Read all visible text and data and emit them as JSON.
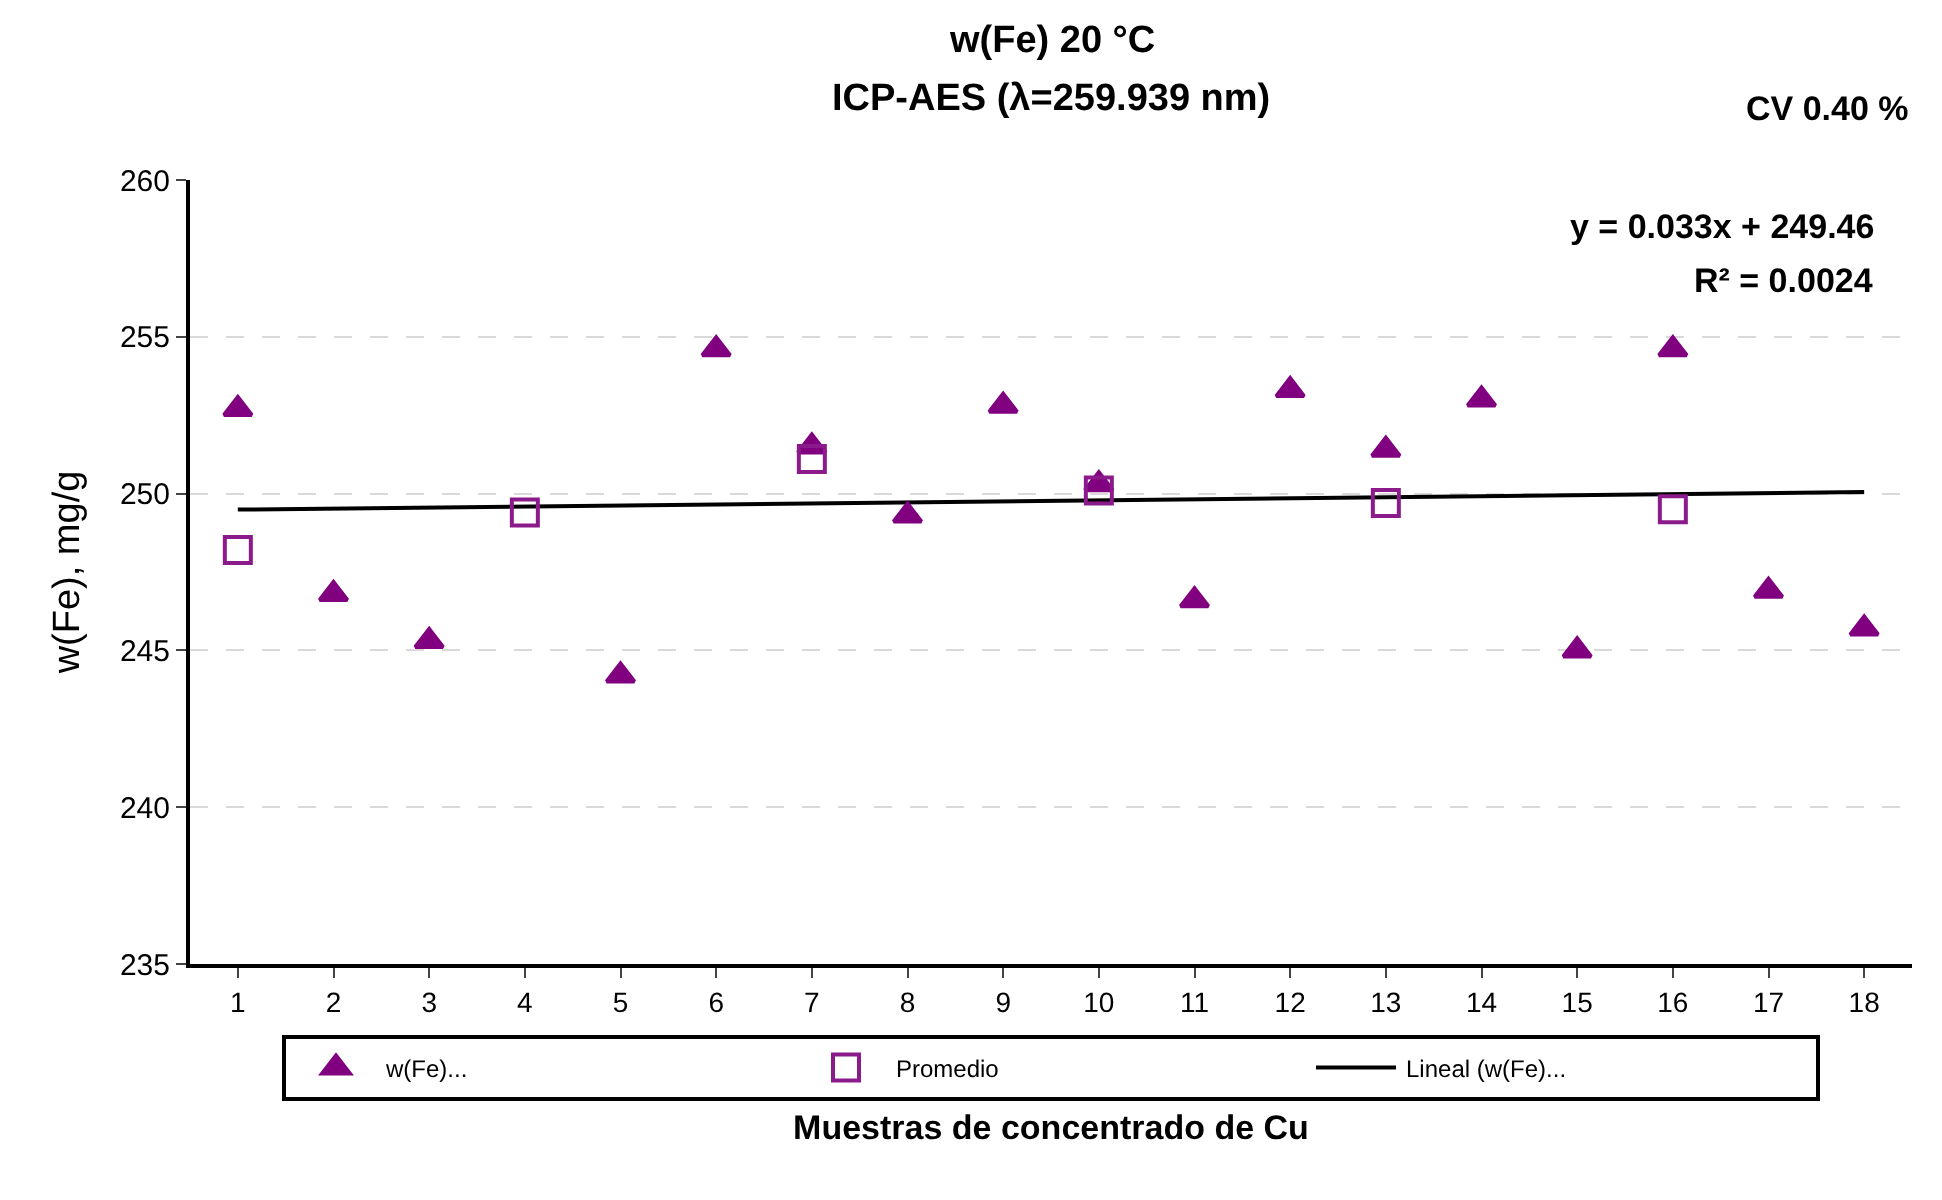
{
  "chart_data": {
    "type": "scatter",
    "title": "w(Fe) 20 °C",
    "subtitle": "ICP-AES (λ=259.939 nm)",
    "xlabel": "Muestras de concentrado de Cu",
    "ylabel": "w(Fe), mg/g",
    "x": [
      1,
      2,
      3,
      4,
      5,
      6,
      7,
      8,
      9,
      10,
      11,
      12,
      13,
      14,
      15,
      16,
      17,
      18
    ],
    "xlim": [
      0.5,
      18.5
    ],
    "xticks": [
      1,
      2,
      3,
      4,
      5,
      6,
      7,
      8,
      9,
      10,
      11,
      12,
      13,
      14,
      15,
      16,
      17,
      18
    ],
    "ylim": [
      235,
      260
    ],
    "yticks": [
      235,
      240,
      245,
      250,
      255,
      260
    ],
    "grid": "y",
    "legend": "bottom",
    "series": [
      {
        "name": "w(Fe)...",
        "color": "#800080",
        "marker": "triangle",
        "values": [
          252.7,
          246.8,
          245.3,
          null,
          244.2,
          254.6,
          251.5,
          249.3,
          252.8,
          250.3,
          246.6,
          253.3,
          251.4,
          253.0,
          245.0,
          254.6,
          246.9,
          245.7
        ]
      },
      {
        "name": "Promedio",
        "color": "#8b1a8b",
        "marker": "square",
        "values": [
          248.2,
          null,
          null,
          249.4,
          null,
          null,
          251.1,
          null,
          null,
          250.1,
          null,
          null,
          249.7,
          null,
          null,
          249.5,
          null,
          null
        ]
      },
      {
        "name": "Lineal (w(Fe)...",
        "type": "line",
        "color": "#000000",
        "marker": "none",
        "x": [
          1,
          18
        ],
        "values": [
          249.49,
          250.05
        ]
      }
    ],
    "annotations": [
      "y = 0.033x + 249.46",
      "R² = 0.0024",
      "CV 0.40 %"
    ]
  }
}
